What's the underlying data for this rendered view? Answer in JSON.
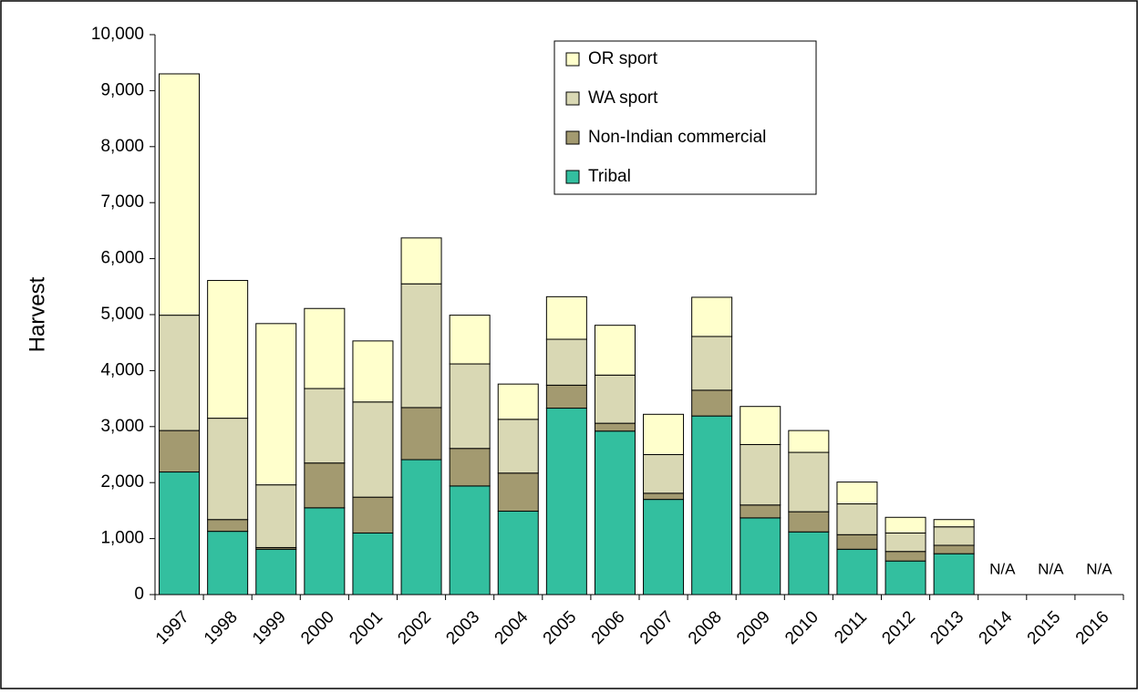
{
  "chart_data": {
    "type": "stacked_bar",
    "y_label": "Harvest",
    "categories": [
      "1997",
      "1998",
      "1999",
      "2000",
      "2001",
      "2002",
      "2003",
      "2004",
      "2005",
      "2006",
      "2007",
      "2008",
      "2009",
      "2010",
      "2011",
      "2012",
      "2013",
      "2014",
      "2015",
      "2016"
    ],
    "series": [
      {
        "name": "Tribal",
        "color": "#33bf9f",
        "values": [
          2190,
          1130,
          810,
          1550,
          1100,
          2410,
          1940,
          1490,
          3330,
          2920,
          1700,
          3190,
          1370,
          1120,
          810,
          600,
          730,
          null,
          null,
          null
        ]
      },
      {
        "name": "Non-Indian commercial",
        "color": "#a39a70",
        "values": [
          740,
          210,
          30,
          800,
          640,
          930,
          670,
          680,
          410,
          140,
          110,
          460,
          230,
          360,
          260,
          170,
          150,
          null,
          null,
          null
        ]
      },
      {
        "name": "WA sport",
        "color": "#d9d8b4",
        "values": [
          2060,
          1810,
          1120,
          1330,
          1700,
          2210,
          1510,
          960,
          820,
          860,
          690,
          960,
          1080,
          1060,
          550,
          330,
          330,
          null,
          null,
          null
        ]
      },
      {
        "name": "OR sport",
        "color": "#ffffcc",
        "values": [
          4310,
          2460,
          2880,
          1430,
          1090,
          820,
          870,
          630,
          760,
          890,
          720,
          700,
          680,
          390,
          390,
          280,
          130,
          null,
          null,
          null
        ]
      }
    ],
    "annotations": [
      "N/A",
      "N/A",
      "N/A"
    ],
    "ylim": [
      0,
      10000
    ],
    "yticks": [
      0,
      {
        "value": 1000,
        "label": "1,000"
      },
      {
        "value": 2000,
        "label": "2,000"
      },
      {
        "value": 3000,
        "label": "3,000"
      },
      {
        "value": 4000,
        "label": "4,000"
      },
      {
        "value": 5000,
        "label": "5,000"
      },
      {
        "value": 6000,
        "label": "6,000"
      },
      {
        "value": 7000,
        "label": "7,000"
      },
      {
        "value": 8000,
        "label": "8,000"
      },
      {
        "value": 9000,
        "label": "9,000"
      },
      {
        "value": 10000,
        "label": "10,000"
      }
    ],
    "legend": "top-center"
  }
}
